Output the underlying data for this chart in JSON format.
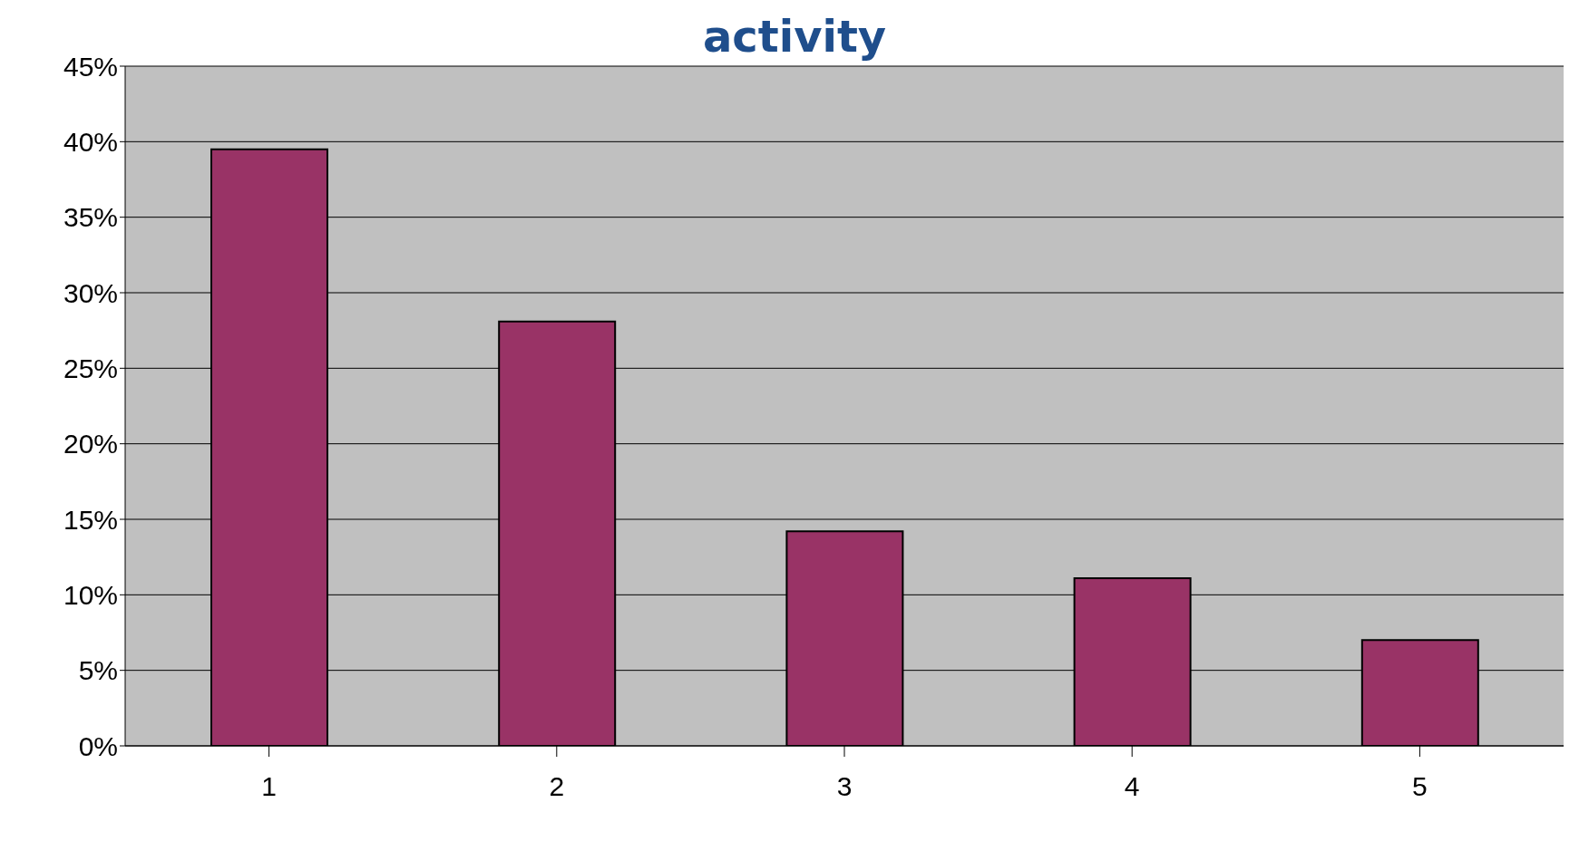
{
  "chart_data": {
    "type": "bar",
    "title": "activity",
    "categories": [
      "1",
      "2",
      "3",
      "4",
      "5"
    ],
    "values": [
      39.5,
      28.1,
      14.2,
      11.1,
      7.0
    ],
    "color": "#993366",
    "ylim": [
      0,
      45
    ],
    "yticks": [
      {
        "value": 0,
        "label": "0%"
      },
      {
        "value": 5,
        "label": "5%"
      },
      {
        "value": 10,
        "label": "10%"
      },
      {
        "value": 15,
        "label": "15%"
      },
      {
        "value": 20,
        "label": "20%"
      },
      {
        "value": 25,
        "label": "25%"
      },
      {
        "value": 30,
        "label": "30%"
      },
      {
        "value": 35,
        "label": "35%"
      },
      {
        "value": 40,
        "label": "40%"
      },
      {
        "value": 45,
        "label": "45%"
      }
    ],
    "grid": "y"
  }
}
